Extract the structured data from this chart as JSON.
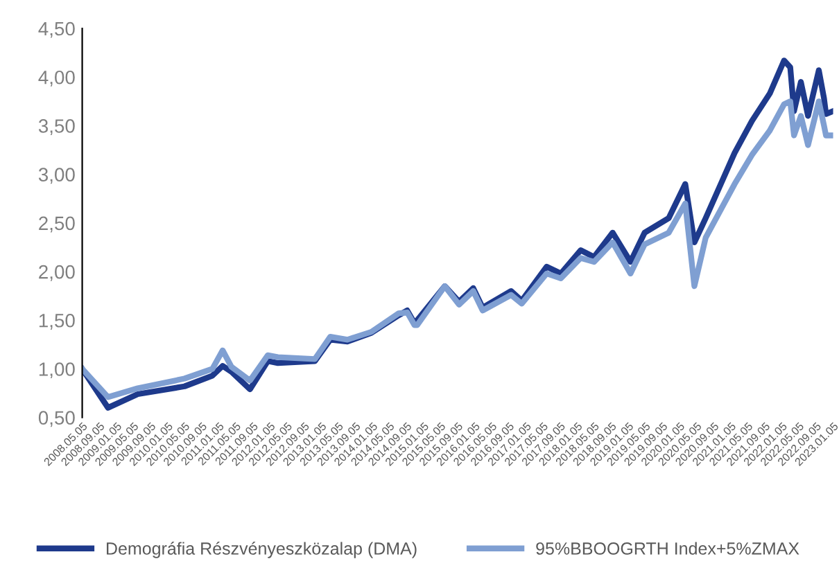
{
  "chart_data": {
    "type": "line",
    "x": [
      "2008-05-05",
      "2008-11-05",
      "2009-06-05",
      "2010-05-05",
      "2010-11-20",
      "2011-02-01",
      "2011-04-05",
      "2011-08-15",
      "2011-12-20",
      "2012-03-01",
      "2012-11-20",
      "2013-03-10",
      "2013-07-10",
      "2013-12-28",
      "2014-07-10",
      "2014-09-10",
      "2014-11-01",
      "2014-11-20",
      "2015-06-05",
      "2015-09-15",
      "2015-12-25",
      "2016-03-01",
      "2016-09-20",
      "2016-12-05",
      "2017-06-01",
      "2017-09-10",
      "2018-01-30",
      "2018-05-05",
      "2018-09-15",
      "2019-01-20",
      "2019-05-01",
      "2019-10-20",
      "2020-02-15",
      "2020-04-20",
      "2020-07-10",
      "2021-02-01",
      "2021-06-05",
      "2021-10-10",
      "2022-01-20",
      "2022-03-05",
      "2022-04-01",
      "2022-05-20",
      "2022-07-10",
      "2022-09-25",
      "2022-11-01",
      "2022-11-15",
      "2023-01-05"
    ],
    "series": [
      {
        "name": "Demográfia Részvényeszközalap (DMA)",
        "color": "#1e3a8c",
        "values": [
          1.0,
          0.6,
          0.74,
          0.82,
          0.93,
          1.03,
          0.97,
          0.79,
          1.08,
          1.06,
          1.08,
          1.3,
          1.28,
          1.37,
          1.55,
          1.6,
          1.47,
          1.5,
          1.85,
          1.69,
          1.83,
          1.63,
          1.8,
          1.7,
          2.05,
          1.98,
          2.22,
          2.15,
          2.4,
          2.1,
          2.4,
          2.55,
          2.9,
          2.3,
          2.55,
          3.22,
          3.55,
          3.83,
          4.17,
          4.1,
          3.65,
          3.95,
          3.6,
          4.07,
          3.78,
          3.62,
          3.65
        ]
      },
      {
        "name": "95%BBOOGRTH Index+5%ZMAX",
        "color": "#7f9fd2",
        "values": [
          1.0,
          0.71,
          0.8,
          0.9,
          1.0,
          1.19,
          1.02,
          0.88,
          1.14,
          1.12,
          1.1,
          1.33,
          1.3,
          1.38,
          1.57,
          1.58,
          1.45,
          1.45,
          1.85,
          1.66,
          1.8,
          1.6,
          1.76,
          1.67,
          1.98,
          1.93,
          2.14,
          2.1,
          2.3,
          1.98,
          2.28,
          2.4,
          2.7,
          1.85,
          2.35,
          2.9,
          3.2,
          3.45,
          3.72,
          3.75,
          3.4,
          3.6,
          3.3,
          3.75,
          3.5,
          3.4,
          3.4
        ]
      }
    ],
    "ylim": [
      0.5,
      4.5
    ],
    "yticks": [
      {
        "value": 0.5,
        "label": "0,50"
      },
      {
        "value": 1.0,
        "label": "1,00"
      },
      {
        "value": 1.5,
        "label": "1,50"
      },
      {
        "value": 2.0,
        "label": "2,00"
      },
      {
        "value": 2.5,
        "label": "2,50"
      },
      {
        "value": 3.0,
        "label": "3,00"
      },
      {
        "value": 3.5,
        "label": "3,50"
      },
      {
        "value": 4.0,
        "label": "4,00"
      },
      {
        "value": 4.5,
        "label": "4,50"
      }
    ],
    "xlim": [
      "2008-05-05",
      "2023-01-05"
    ],
    "xticks": [
      {
        "value": "2008-05-05",
        "label": "2008.05.05"
      },
      {
        "value": "2008-09-05",
        "label": "2008.09.05"
      },
      {
        "value": "2009-01-05",
        "label": "2009.01.05"
      },
      {
        "value": "2009-05-05",
        "label": "2009.05.05"
      },
      {
        "value": "2009-09-05",
        "label": "2009.09.05"
      },
      {
        "value": "2010-01-05",
        "label": "2010.01.05"
      },
      {
        "value": "2010-05-05",
        "label": "2010.05.05"
      },
      {
        "value": "2010-09-05",
        "label": "2010.09.05"
      },
      {
        "value": "2011-01-05",
        "label": "2011.01.05"
      },
      {
        "value": "2011-05-05",
        "label": "2011.05.05"
      },
      {
        "value": "2011-09-05",
        "label": "2011.09.05"
      },
      {
        "value": "2012-01-05",
        "label": "2012.01.05"
      },
      {
        "value": "2012-05-05",
        "label": "2012.05.05"
      },
      {
        "value": "2012-09-05",
        "label": "2012.09.05"
      },
      {
        "value": "2013-01-05",
        "label": "2013.01.05"
      },
      {
        "value": "2013-05-05",
        "label": "2013.05.05"
      },
      {
        "value": "2013-09-05",
        "label": "2013.09.05"
      },
      {
        "value": "2014-01-05",
        "label": "2014.01.05"
      },
      {
        "value": "2014-05-05",
        "label": "2014.05.05"
      },
      {
        "value": "2014-09-05",
        "label": "2014.09.05"
      },
      {
        "value": "2015-01-05",
        "label": "2015.01.05"
      },
      {
        "value": "2015-05-05",
        "label": "2015.05.05"
      },
      {
        "value": "2015-09-05",
        "label": "2015.09.05"
      },
      {
        "value": "2016-01-05",
        "label": "2016.01.05"
      },
      {
        "value": "2016-05-05",
        "label": "2016.05.05"
      },
      {
        "value": "2016-09-05",
        "label": "2016.09.05"
      },
      {
        "value": "2017-01-05",
        "label": "2017.01.05"
      },
      {
        "value": "2017-05-05",
        "label": "2017.05.05"
      },
      {
        "value": "2017-09-05",
        "label": "2017.09.05"
      },
      {
        "value": "2018-01-05",
        "label": "2018.01.05"
      },
      {
        "value": "2018-05-05",
        "label": "2018.05.05"
      },
      {
        "value": "2018-09-05",
        "label": "2018.09.05"
      },
      {
        "value": "2019-01-05",
        "label": "2019.01.05"
      },
      {
        "value": "2019-05-05",
        "label": "2019.05.05"
      },
      {
        "value": "2019-09-05",
        "label": "2019.09.05"
      },
      {
        "value": "2020-01-05",
        "label": "2020.01.05"
      },
      {
        "value": "2020-05-05",
        "label": "2020.05.05"
      },
      {
        "value": "2020-09-05",
        "label": "2020.09.05"
      },
      {
        "value": "2021-01-05",
        "label": "2021.01.05"
      },
      {
        "value": "2021-05-05",
        "label": "2021.05.05"
      },
      {
        "value": "2021-09-05",
        "label": "2021.09.05"
      },
      {
        "value": "2022-01-05",
        "label": "2022.01.05"
      },
      {
        "value": "2022-05-05",
        "label": "2022.05.05"
      },
      {
        "value": "2022-09-05",
        "label": "2022.09.05"
      },
      {
        "value": "2023-01-05",
        "label": "2023.01.05"
      }
    ],
    "grid": false,
    "legend": "bottom",
    "marker": "none",
    "line_style": "solid"
  }
}
